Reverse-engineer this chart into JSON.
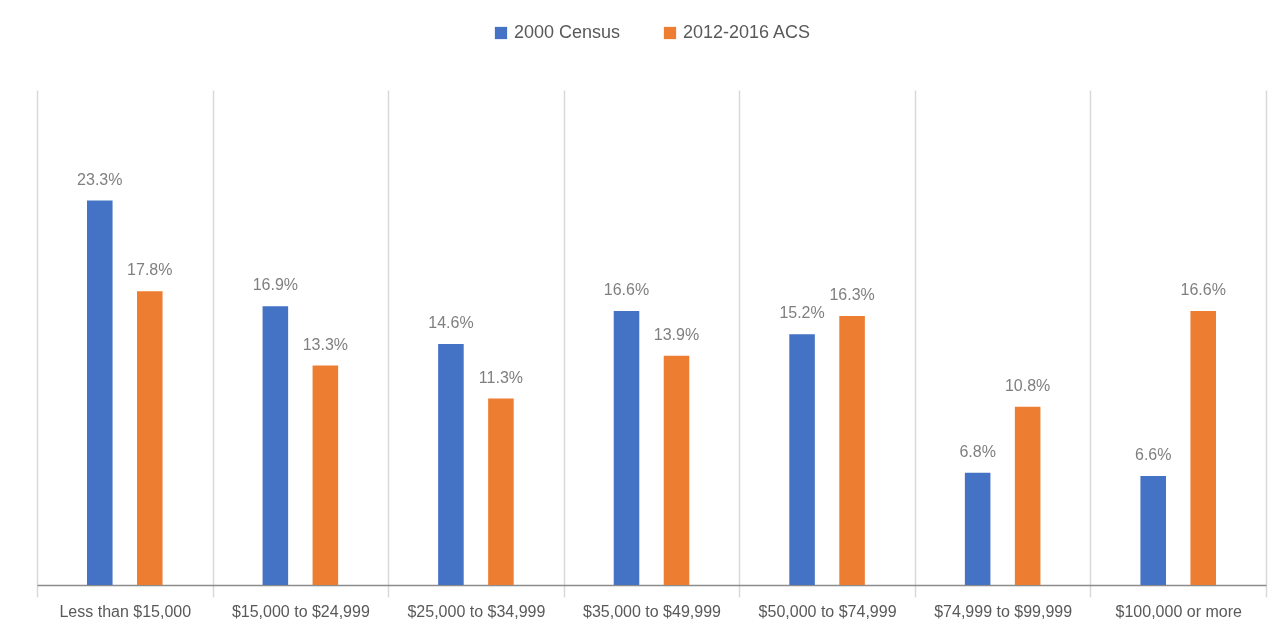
{
  "chart_data": {
    "type": "bar",
    "categories": [
      "Less than $15,000",
      "$15,000 to $24,999",
      "$25,000 to $34,999",
      "$35,000 to $49,999",
      "$50,000 to $74,999",
      "$74,999 to $99,999",
      "$100,000 or more"
    ],
    "series": [
      {
        "name": "2000 Census",
        "color": "#4472c4",
        "values": [
          23.3,
          16.9,
          14.6,
          16.6,
          15.2,
          6.8,
          6.6
        ],
        "value_labels": [
          "23.3%",
          "16.9%",
          "14.6%",
          "16.6%",
          "15.2%",
          "6.8%",
          "6.6%"
        ]
      },
      {
        "name": "2012-2016 ACS",
        "color": "#ed7d31",
        "values": [
          17.8,
          13.3,
          11.3,
          13.9,
          16.3,
          10.8,
          16.6
        ],
        "value_labels": [
          "17.8%",
          "13.3%",
          "11.3%",
          "13.9%",
          "16.3%",
          "10.8%",
          "16.6%"
        ]
      }
    ],
    "ylim": [
      0,
      30
    ],
    "tick_labels": "x",
    "grid": "x",
    "legend": "top"
  }
}
